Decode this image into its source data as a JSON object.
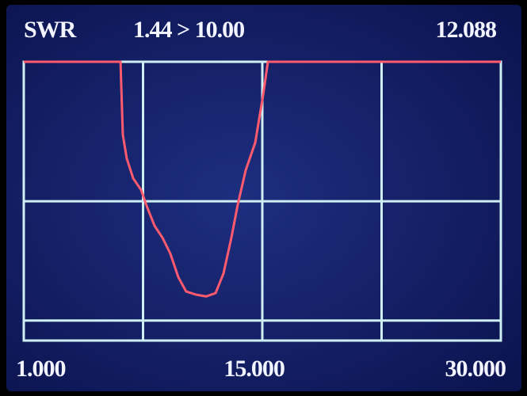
{
  "chart_data": {
    "type": "line",
    "title": "SWR",
    "subtitle": "1.44 > 10.00",
    "annotation": "12.088",
    "x": [
      1,
      6.88,
      7.02,
      7.26,
      7.65,
      8.13,
      8.47,
      8.95,
      9.43,
      9.91,
      10.39,
      10.87,
      11.5,
      12.09,
      12.66,
      13.14,
      13.62,
      14.01,
      14.49,
      15.07,
      15.55,
      15.84,
      30
    ],
    "series": [
      {
        "color": "#ff5a6e",
        "values": [
          10,
          10,
          5.48,
          4.5,
          3.82,
          3.47,
          3.04,
          2.58,
          2.34,
          2.05,
          1.69,
          1.5,
          1.46,
          1.44,
          1.48,
          1.74,
          2.34,
          3.08,
          4.08,
          5.13,
          7.6,
          10,
          10
        ]
      }
    ],
    "xlim": [
      1,
      30
    ],
    "xticks": [
      {
        "value": 1,
        "label": "1.000"
      },
      {
        "value": 15,
        "label": "15.000"
      },
      {
        "value": 30,
        "label": "30.000"
      }
    ],
    "xgrid": [
      8.25,
      15.5,
      22.75
    ],
    "ylim": [
      1,
      10
    ],
    "ygrid": [
      1.18,
      3.16
    ],
    "log_y": true,
    "grid": true
  }
}
